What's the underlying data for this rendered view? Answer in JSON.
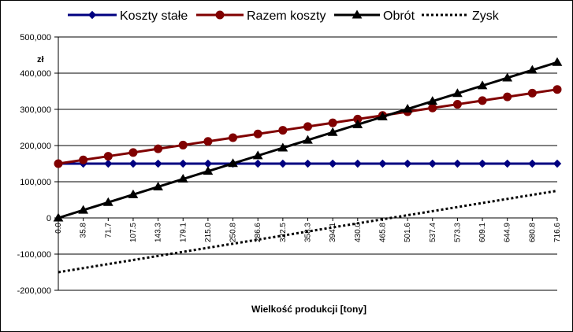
{
  "chart_data": {
    "type": "line",
    "xlabel": "Wielkość produkcji [tony]",
    "ylabel": "zł",
    "ylim": [
      -200000,
      500000
    ],
    "y_ticks": [
      500000,
      400000,
      300000,
      200000,
      100000,
      0,
      -100000,
      -200000
    ],
    "y_tick_labels": [
      "500,000",
      "400,000",
      "300,000",
      "200,000",
      "100,000",
      "0",
      "-100,000",
      "-200,000"
    ],
    "categories": [
      "0.0",
      "35.8",
      "71.7",
      "107.5",
      "143.3",
      "179.1",
      "215.0",
      "250.8",
      "286.6",
      "322.5",
      "358.3",
      "394.1",
      "430.0",
      "465.8",
      "501.6",
      "537.4",
      "573.3",
      "609.1",
      "644.9",
      "680.8",
      "716.6"
    ],
    "grid": "horizontal",
    "legend": "top",
    "series": [
      {
        "name": "Koszty stałe",
        "color": "#000080",
        "marker": "diamond",
        "style": "solid",
        "values": [
          150000,
          150000,
          150000,
          150000,
          150000,
          150000,
          150000,
          150000,
          150000,
          150000,
          150000,
          150000,
          150000,
          150000,
          150000,
          150000,
          150000,
          150000,
          150000,
          150000,
          150000
        ]
      },
      {
        "name": "Razem koszty",
        "color": "#800000",
        "marker": "circle",
        "style": "solid",
        "values": [
          150000,
          160250,
          170500,
          180750,
          191000,
          201250,
          211500,
          221750,
          232000,
          242250,
          252500,
          262750,
          273000,
          283250,
          293500,
          303750,
          314000,
          324250,
          334500,
          344750,
          355000
        ]
      },
      {
        "name": "Obrót",
        "color": "#000000",
        "marker": "triangle",
        "style": "solid",
        "values": [
          0,
          21500,
          43000,
          64500,
          86000,
          107500,
          129000,
          150500,
          172000,
          193500,
          215000,
          236500,
          258000,
          279500,
          301000,
          322500,
          344000,
          365500,
          387000,
          408500,
          430000
        ]
      },
      {
        "name": "Zysk",
        "color": "#000000",
        "marker": "none",
        "style": "dotted",
        "values": [
          -150000,
          -138750,
          -127500,
          -116250,
          -105000,
          -93750,
          -82500,
          -71250,
          -60000,
          -48750,
          -37500,
          -26250,
          -15000,
          -3750,
          7500,
          18750,
          30000,
          41250,
          52500,
          63750,
          75000
        ]
      }
    ]
  }
}
